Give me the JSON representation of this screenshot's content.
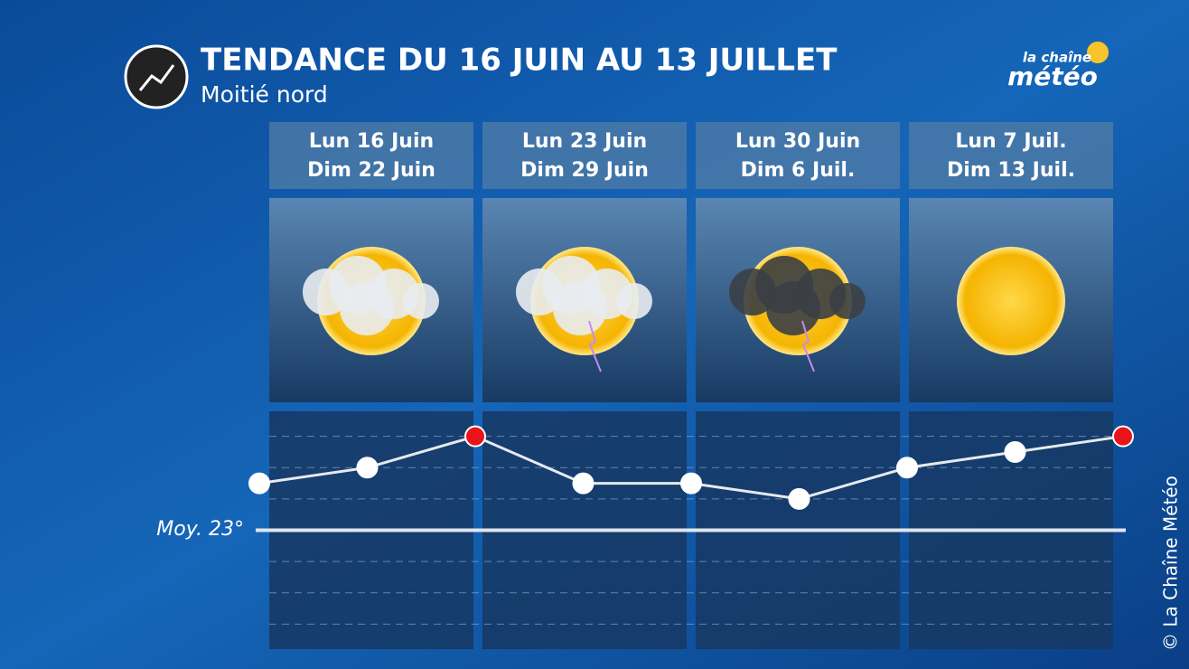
{
  "header": {
    "title": "TENDANCE DU 16 JUIN AU 13 JUILLET",
    "subtitle": "Moitié nord",
    "logo_top": "la chaîne",
    "logo_main": "météo"
  },
  "copyright": "© La Chaîne Météo",
  "weeks": [
    [
      "Lun 16 Juin",
      "Dim 22 Juin"
    ],
    [
      "Lun 23 Juin",
      "Dim 29 Juin"
    ],
    [
      "Lun 30 Juin",
      "Dim 6 Juil."
    ],
    [
      "Lun 7 Juil.",
      "Dim 13 Juil."
    ]
  ],
  "chart_data": {
    "type": "line",
    "values": [
      24.5,
      25,
      26,
      24.5,
      24.5,
      24,
      25,
      25.5,
      26
    ],
    "marker_colors": [
      "#ffffff",
      "#ffffff",
      "#e8141a",
      "#ffffff",
      "#ffffff",
      "#ffffff",
      "#ffffff",
      "#ffffff",
      "#e8141a"
    ],
    "line_color": "#e6e9ee",
    "ylim": [
      19.2,
      26.8
    ],
    "gridlines": [
      20,
      21,
      22,
      24,
      25,
      26
    ],
    "average": {
      "value": 23,
      "label": "Moy. 23°"
    }
  }
}
